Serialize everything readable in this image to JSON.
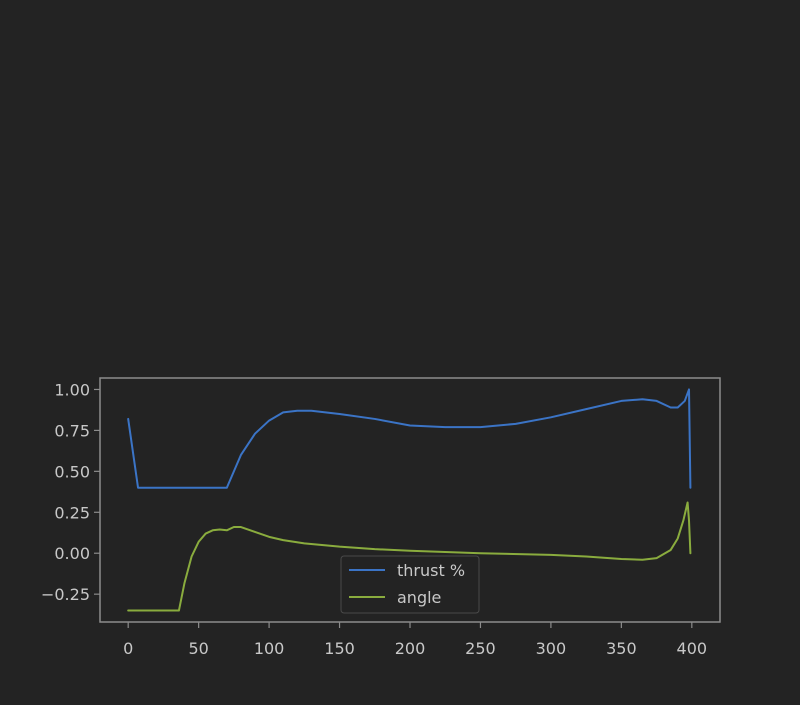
{
  "chart_data": {
    "type": "line",
    "title": "",
    "xlabel": "",
    "ylabel": "",
    "xlim": [
      -20,
      420
    ],
    "ylim": [
      -0.42,
      1.07
    ],
    "x_ticks": [
      0,
      50,
      100,
      150,
      200,
      250,
      300,
      350,
      400
    ],
    "y_ticks": [
      -0.25,
      0.0,
      0.25,
      0.5,
      0.75,
      1.0
    ],
    "x_tick_labels": [
      "0",
      "50",
      "100",
      "150",
      "200",
      "250",
      "300",
      "350",
      "400"
    ],
    "y_tick_labels": [
      "−0.25",
      "0.00",
      "0.25",
      "0.50",
      "0.75",
      "1.00"
    ],
    "grid": false,
    "legend_position": "lower-center",
    "colors": {
      "background": "#232323",
      "axes_frame": "#8c8c8c",
      "tick_text": "#c8c8c8"
    },
    "series": [
      {
        "name": "thrust %",
        "color": "#3b74c6",
        "x": [
          0,
          7,
          20,
          40,
          60,
          70,
          80,
          90,
          100,
          110,
          120,
          130,
          150,
          175,
          200,
          225,
          250,
          275,
          300,
          325,
          350,
          365,
          375,
          385,
          390,
          395,
          398,
          399
        ],
        "y": [
          0.82,
          0.4,
          0.4,
          0.4,
          0.4,
          0.4,
          0.6,
          0.73,
          0.81,
          0.86,
          0.87,
          0.87,
          0.85,
          0.82,
          0.78,
          0.77,
          0.77,
          0.79,
          0.83,
          0.88,
          0.93,
          0.94,
          0.93,
          0.89,
          0.89,
          0.93,
          1.0,
          0.4
        ]
      },
      {
        "name": "angle",
        "color": "#8aac3e",
        "x": [
          0,
          20,
          36,
          40,
          45,
          50,
          55,
          60,
          65,
          70,
          75,
          80,
          90,
          100,
          110,
          125,
          150,
          175,
          200,
          250,
          300,
          325,
          350,
          365,
          375,
          385,
          390,
          394,
          397,
          398,
          399
        ],
        "y": [
          -0.35,
          -0.35,
          -0.35,
          -0.18,
          -0.02,
          0.07,
          0.12,
          0.14,
          0.145,
          0.14,
          0.16,
          0.16,
          0.13,
          0.1,
          0.08,
          0.06,
          0.04,
          0.025,
          0.015,
          0.0,
          -0.01,
          -0.02,
          -0.035,
          -0.04,
          -0.03,
          0.02,
          0.09,
          0.2,
          0.31,
          0.2,
          0.0
        ]
      }
    ]
  }
}
